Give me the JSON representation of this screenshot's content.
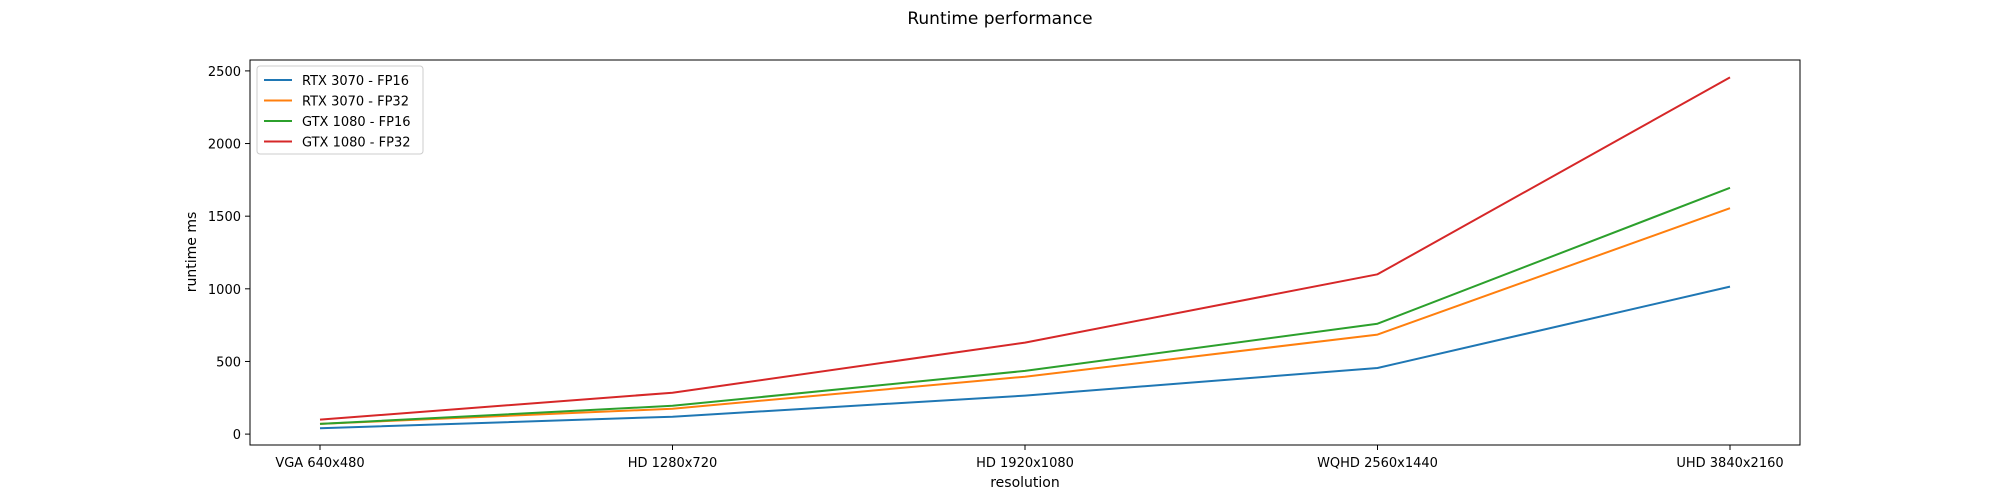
{
  "chart_data": {
    "type": "line",
    "title": "Runtime performance",
    "xlabel": "resolution",
    "ylabel": "runtime ms",
    "categories": [
      "VGA 640x480",
      "HD 1280x720",
      "HD 1920x1080",
      "WQHD 2560x1440",
      "UHD 3840x2160"
    ],
    "yticks": [
      0,
      500,
      1000,
      1500,
      2000,
      2500
    ],
    "ylim": [
      -75,
      2575
    ],
    "grid": false,
    "legend_position": "upper-left",
    "series": [
      {
        "name": "RTX 3070 - FP16",
        "color": "#1f77b4",
        "values": [
          40,
          120,
          265,
          455,
          1015
        ]
      },
      {
        "name": "RTX 3070 - FP32",
        "color": "#ff7f0e",
        "values": [
          70,
          175,
          395,
          685,
          1555
        ]
      },
      {
        "name": "GTX 1080 - FP16",
        "color": "#2ca02c",
        "values": [
          70,
          195,
          435,
          760,
          1695
        ]
      },
      {
        "name": "GTX 1080 - FP32",
        "color": "#d62728",
        "values": [
          100,
          285,
          630,
          1100,
          2455
        ]
      }
    ]
  }
}
